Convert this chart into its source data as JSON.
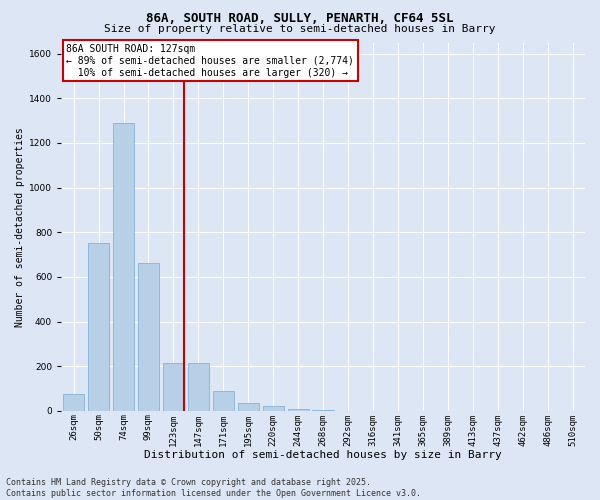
{
  "title1": "86A, SOUTH ROAD, SULLY, PENARTH, CF64 5SL",
  "title2": "Size of property relative to semi-detached houses in Barry",
  "xlabel": "Distribution of semi-detached houses by size in Barry",
  "ylabel": "Number of semi-detached properties",
  "categories": [
    "26sqm",
    "50sqm",
    "74sqm",
    "99sqm",
    "123sqm",
    "147sqm",
    "171sqm",
    "195sqm",
    "220sqm",
    "244sqm",
    "268sqm",
    "292sqm",
    "316sqm",
    "341sqm",
    "365sqm",
    "389sqm",
    "413sqm",
    "437sqm",
    "462sqm",
    "486sqm",
    "510sqm"
  ],
  "values": [
    75,
    750,
    1290,
    660,
    215,
    215,
    90,
    35,
    20,
    10,
    3,
    0,
    0,
    0,
    0,
    0,
    0,
    0,
    0,
    0,
    0
  ],
  "bar_color": "#b8cfe8",
  "bar_edge_color": "#7aaad0",
  "vline_color": "#cc0000",
  "annotation_line1": "86A SOUTH ROAD: 127sqm",
  "annotation_line2": "← 89% of semi-detached houses are smaller (2,774)",
  "annotation_line3": "  10% of semi-detached houses are larger (320) →",
  "annotation_box_color": "#ffffff",
  "annotation_box_edge_color": "#cc0000",
  "footer_line1": "Contains HM Land Registry data © Crown copyright and database right 2025.",
  "footer_line2": "Contains public sector information licensed under the Open Government Licence v3.0.",
  "ylim": [
    0,
    1650
  ],
  "background_color": "#dce6f5",
  "plot_bg_color": "#dce6f5",
  "grid_color": "#ffffff",
  "title1_fontsize": 9,
  "title2_fontsize": 8,
  "annotation_fontsize": 7,
  "tick_fontsize": 6.5,
  "ylabel_fontsize": 7,
  "xlabel_fontsize": 8,
  "footer_fontsize": 6
}
